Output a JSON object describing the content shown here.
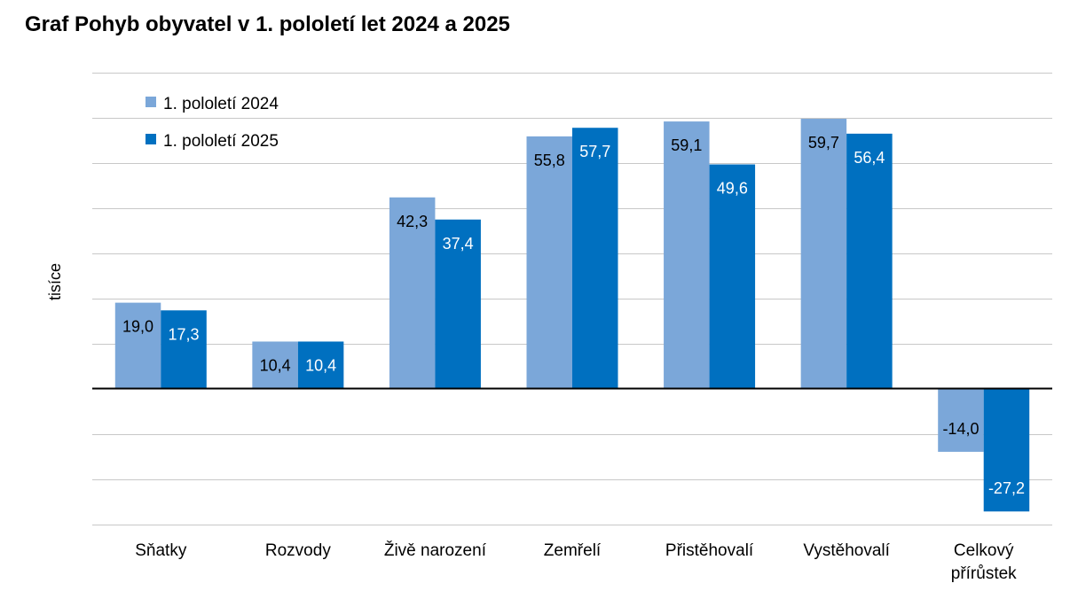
{
  "title": "Graf Pohyb obyvatel v 1. pololetí let 2024 a 2025",
  "chart_data": {
    "type": "bar",
    "ylabel": "tisíce",
    "ylim": [
      -30,
      70
    ],
    "grid": true,
    "legend_position": "top-left",
    "categories": [
      [
        "Sňatky"
      ],
      [
        "Rozvody"
      ],
      [
        "Živě narození"
      ],
      [
        "Zemřelí"
      ],
      [
        "Přistěhovalí"
      ],
      [
        "Vystěhovalí"
      ],
      [
        "Celkový",
        "přírůstek"
      ]
    ],
    "series": [
      {
        "name": "1. pololetí 2024",
        "color": "#7BA7D9",
        "label_color": "#000000",
        "values": [
          19.0,
          10.4,
          42.3,
          55.8,
          59.1,
          59.7,
          -14.0
        ],
        "labels": [
          "19,0",
          "10,4",
          "42,3",
          "55,8",
          "59,1",
          "59,7",
          "-14,0"
        ]
      },
      {
        "name": "1. pololetí 2025",
        "color": "#0070C0",
        "label_color": "#ffffff",
        "values": [
          17.3,
          10.4,
          37.4,
          57.7,
          49.6,
          56.4,
          -27.2
        ],
        "labels": [
          "17,3",
          "10,4",
          "37,4",
          "57,7",
          "49,6",
          "56,4",
          "-27,2"
        ]
      }
    ]
  }
}
